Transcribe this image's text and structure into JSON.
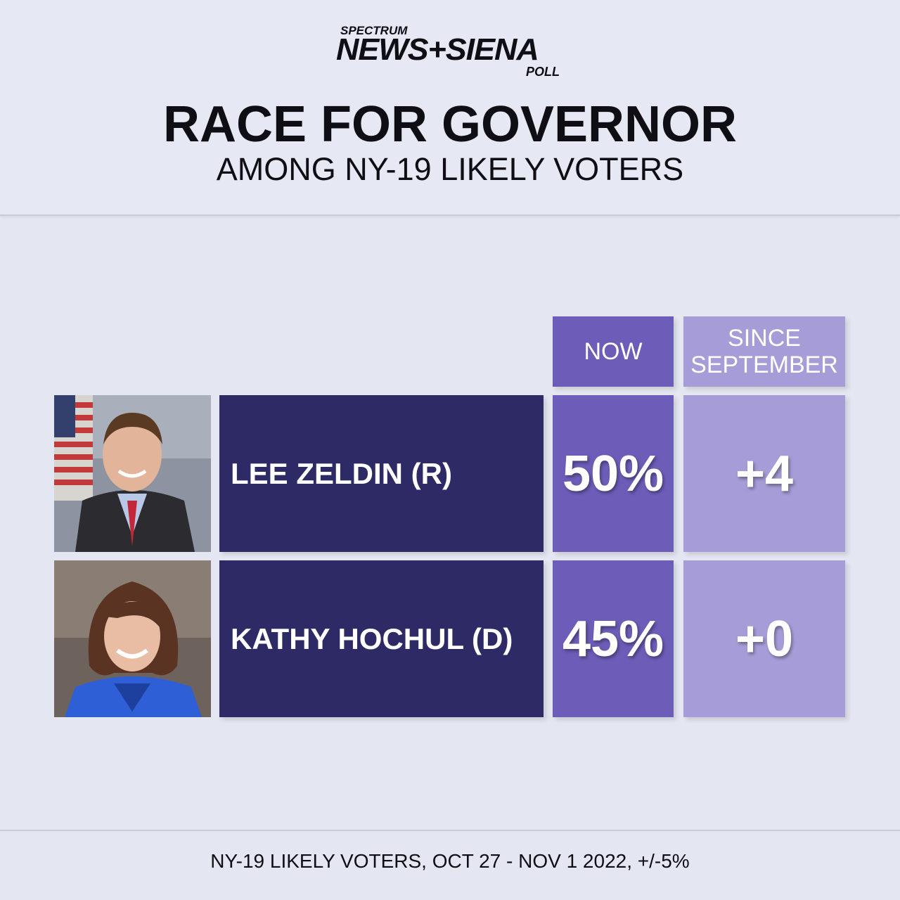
{
  "logo": {
    "top_text": "SPECTRUM",
    "main_text": "NEWS+SIENA",
    "sub_text": "POLL"
  },
  "title": "RACE FOR GOVERNOR",
  "subtitle": "AMONG NY-19 LIKELY VOTERS",
  "columns": {
    "now": "NOW",
    "since_line1": "SINCE",
    "since_line2": "SEPTEMBER"
  },
  "colors": {
    "name_cell": "#2e2a66",
    "now_cell": "#6d5db8",
    "since_cell": "#a69dd8",
    "background": "#e4e6f1"
  },
  "chart_data": {
    "type": "table",
    "title": "RACE FOR GOVERNOR",
    "subtitle": "AMONG NY-19 LIKELY VOTERS",
    "columns": [
      "NOW",
      "SINCE SEPTEMBER"
    ],
    "rows": [
      {
        "candidate": "LEE ZELDIN (R)",
        "now": "50%",
        "now_value": 50,
        "since_september": "+4",
        "change_value": 4
      },
      {
        "candidate": "KATHY HOCHUL (D)",
        "now": "45%",
        "now_value": 45,
        "since_september": "+0",
        "change_value": 0
      }
    ]
  },
  "footer": "NY-19 LIKELY VOTERS, OCT 27 - NOV 1 2022, +/-5%"
}
